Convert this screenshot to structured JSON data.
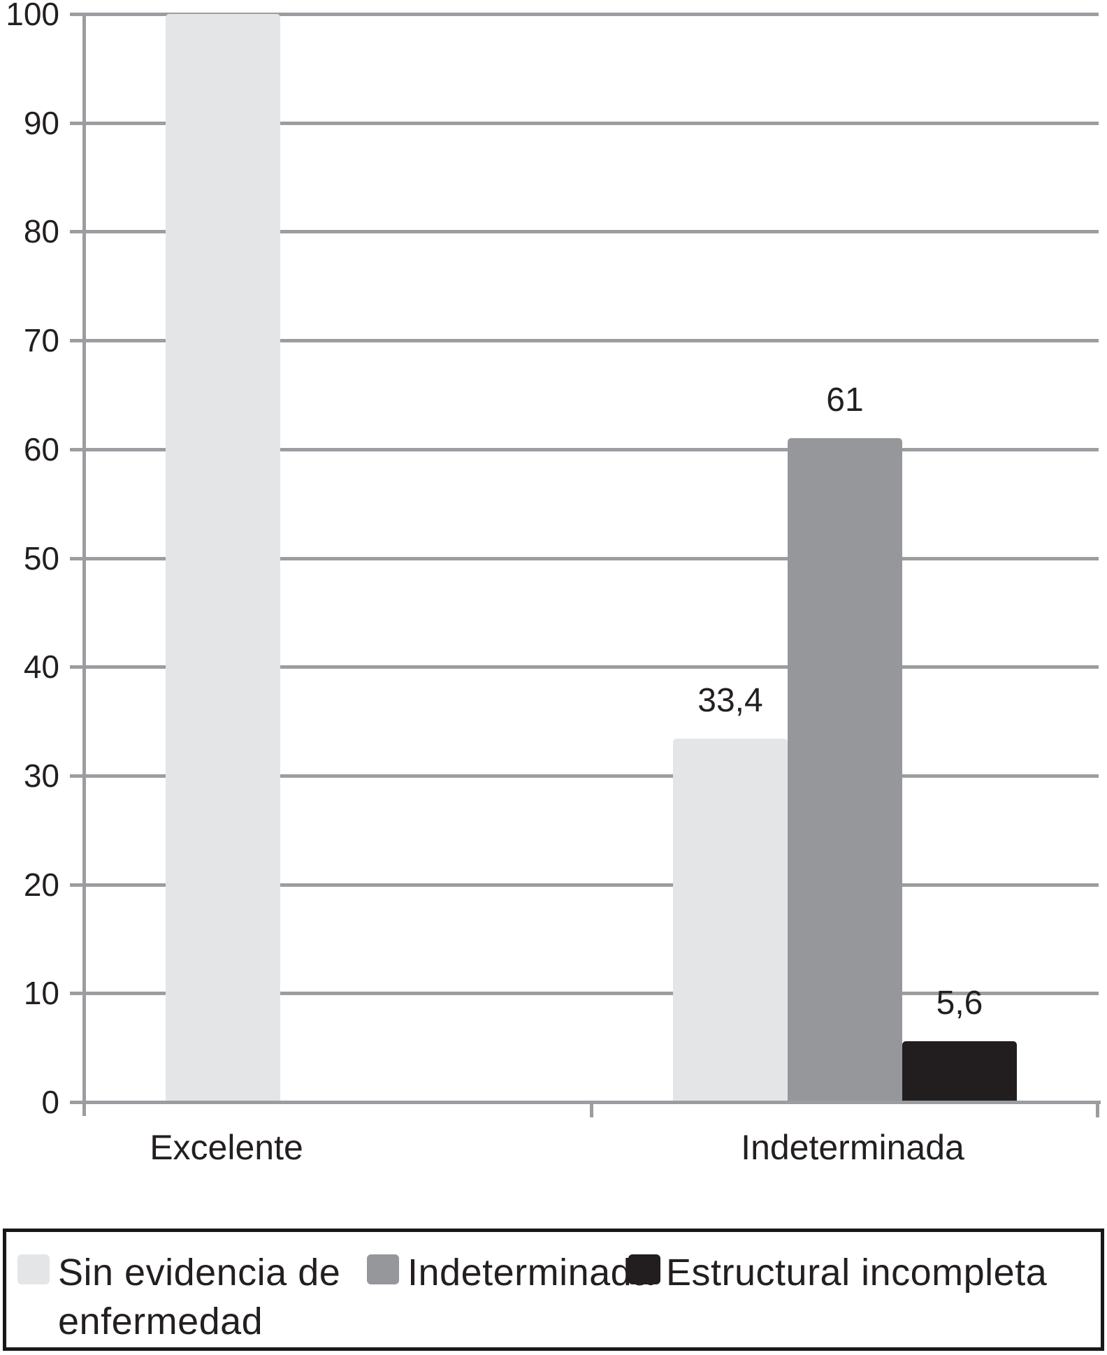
{
  "chart_data": {
    "type": "bar",
    "title": "",
    "categories": [
      "Excelente",
      "Indeterminada"
    ],
    "series": [
      {
        "name": "Sin evidencia de enfermedad",
        "color": "#e4e5e7",
        "values": [
          100,
          33.4
        ]
      },
      {
        "name": "Indeterminada",
        "color": "#95979a",
        "values": [
          null,
          61
        ]
      },
      {
        "name": "Estructural incompleta",
        "color": "#221e1f",
        "values": [
          null,
          5.6
        ]
      }
    ],
    "bar_value_labels": [
      [
        null,
        "33,4"
      ],
      [
        null,
        "61"
      ],
      [
        null,
        "5,6"
      ]
    ],
    "ylim": [
      0,
      100
    ],
    "yticks": [
      0,
      10,
      20,
      30,
      40,
      50,
      60,
      70,
      80,
      90,
      100
    ],
    "grid": true,
    "legend": {
      "position": "bottom",
      "items": [
        {
          "label": "Sin evidencia de\nenfermedad",
          "color": "#e4e5e7"
        },
        {
          "label": "Indeterminada",
          "color": "#95979a"
        },
        {
          "label": "Estructural incompleta",
          "color": "#221e1f"
        }
      ]
    },
    "colors": {
      "axis": "#9b9da0",
      "grid": "#9b9da0",
      "text": "#231f20",
      "legend_border": "#1a1718",
      "background": "#ffffff"
    }
  }
}
